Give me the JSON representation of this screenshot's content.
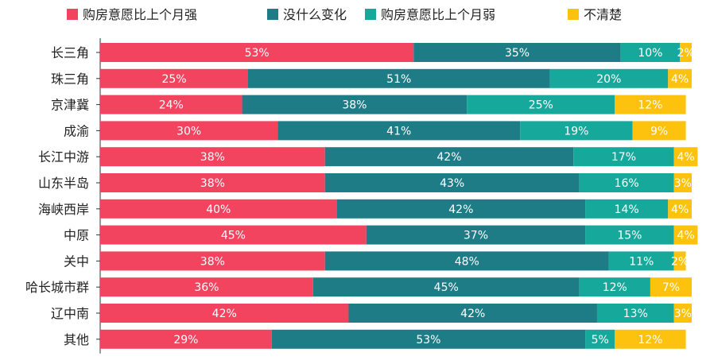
{
  "chart_data": {
    "type": "bar",
    "orientation": "horizontal",
    "stacked": true,
    "normalized_percent": true,
    "legend_position": "top",
    "categories": [
      "长三角",
      "珠三角",
      "京津冀",
      "成渝",
      "长江中游",
      "山东半岛",
      "海峡西岸",
      "中原",
      "关中",
      "哈长城市群",
      "辽中南",
      "其他"
    ],
    "series": [
      {
        "name": "购房意愿比上个月强",
        "color": "#f2435f",
        "values": [
          53,
          25,
          24,
          30,
          38,
          38,
          40,
          45,
          38,
          36,
          42,
          29
        ],
        "labels": [
          "53%",
          "25%",
          "24%",
          "30%",
          "38%",
          "38%",
          "40%",
          "45%",
          "38%",
          "36%",
          "42%",
          "29%"
        ]
      },
      {
        "name": "没什么变化",
        "color": "#1d7c86",
        "values": [
          35,
          51,
          38,
          41,
          42,
          43,
          42,
          37,
          48,
          45,
          42,
          53
        ],
        "labels": [
          "35%",
          "51%",
          "38%",
          "41%",
          "42%",
          "43%",
          "42%",
          "37%",
          "48%",
          "45%",
          "42%",
          "53%"
        ]
      },
      {
        "name": "购房意愿比上个月弱",
        "color": "#16a89b",
        "values": [
          10,
          20,
          25,
          19,
          17,
          16,
          14,
          15,
          11,
          12,
          13,
          5
        ],
        "labels": [
          "10%",
          "20%",
          "25%",
          "19%",
          "17%",
          "16%",
          "14%",
          "15%",
          "11%",
          "12%",
          "13%",
          "5%"
        ]
      },
      {
        "name": "不清楚",
        "color": "#fcc20e",
        "values": [
          2,
          4,
          12,
          9,
          4,
          3,
          4,
          4,
          2,
          7,
          3,
          12
        ],
        "labels": [
          "2%",
          "4%",
          "12%",
          "9%",
          "4%",
          "3%",
          "4%",
          "4%",
          "2%",
          "7%",
          "3%",
          "12%"
        ]
      }
    ],
    "xlim": [
      0,
      100
    ],
    "grid": false
  }
}
